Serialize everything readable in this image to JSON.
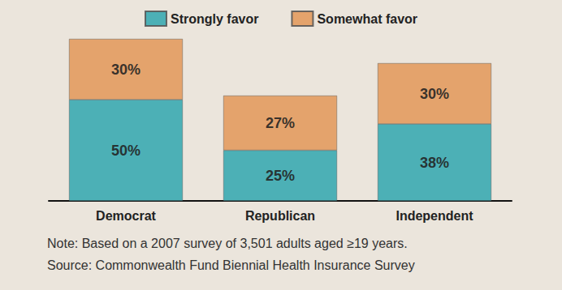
{
  "chart_data": {
    "type": "bar",
    "categories": [
      "Democrat",
      "Republican",
      "Independent"
    ],
    "series": [
      {
        "name": "Strongly favor",
        "color": "#36a9b1",
        "values": [
          50,
          25,
          38
        ],
        "value_labels": [
          "50%",
          "25%",
          "38%"
        ]
      },
      {
        "name": "Somewhat favor",
        "color": "#e39a5c",
        "values": [
          30,
          27,
          30
        ],
        "value_labels": [
          "30%",
          "27%",
          "30%"
        ]
      }
    ],
    "ylim": [
      0,
      80
    ],
    "stacked": true,
    "data_labels": true,
    "tick_labels": "x",
    "grid": false,
    "legend": "top",
    "annotations": [
      "Note: Based on a 2007 survey of 3,501 adults aged ≥19 years.",
      "Source: Commonwealth Fund Biennial Health Insurance Survey"
    ]
  }
}
